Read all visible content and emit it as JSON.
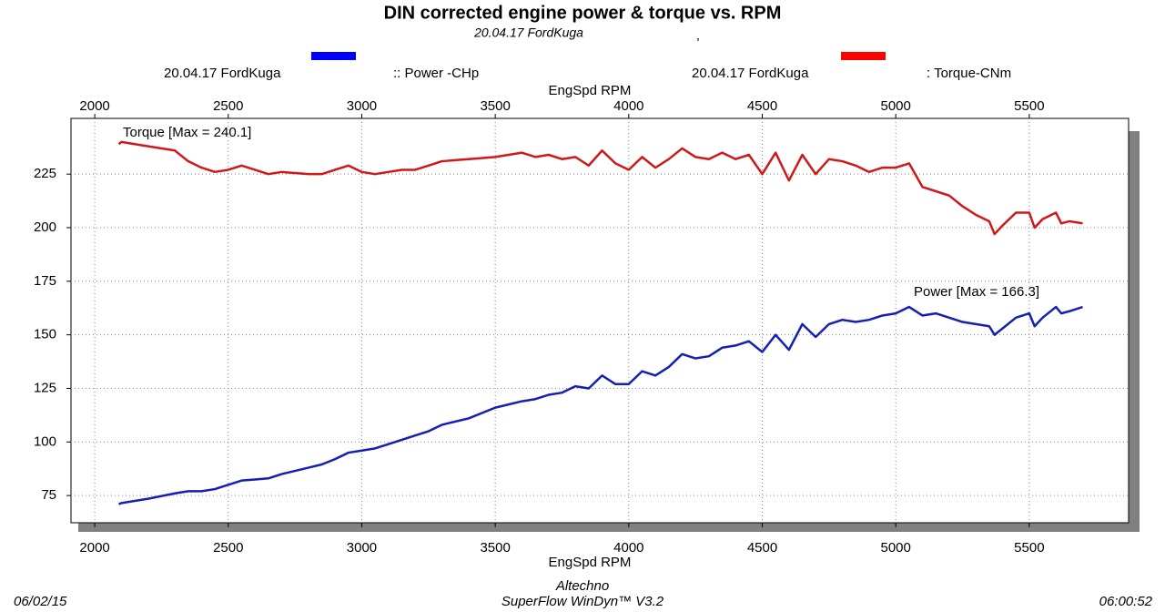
{
  "chart_data": {
    "type": "line",
    "title": "DIN corrected engine power & torque vs. RPM",
    "subtitle": "20.04.17 FordKuga",
    "subtitle_mark": ",",
    "xlabel": "EngSpd RPM",
    "xlim": [
      1911,
      5872
    ],
    "ylim": [
      62.3,
      251
    ],
    "xticks": [
      2000,
      2500,
      3000,
      3500,
      4000,
      4500,
      5000,
      5500
    ],
    "yticks": [
      75,
      100,
      125,
      150,
      175,
      200,
      225
    ],
    "grid": true,
    "x": [
      2090,
      2100,
      2200,
      2300,
      2350,
      2400,
      2450,
      2500,
      2550,
      2600,
      2650,
      2700,
      2800,
      2850,
      2900,
      2950,
      3000,
      3050,
      3100,
      3150,
      3200,
      3250,
      3300,
      3400,
      3500,
      3600,
      3650,
      3700,
      3750,
      3800,
      3850,
      3900,
      3950,
      4000,
      4050,
      4100,
      4150,
      4200,
      4250,
      4300,
      4350,
      4400,
      4450,
      4500,
      4550,
      4600,
      4650,
      4700,
      4750,
      4800,
      4850,
      4900,
      4950,
      5000,
      5050,
      5100,
      5150,
      5200,
      5250,
      5300,
      5350,
      5370,
      5400,
      5450,
      5500,
      5520,
      5550,
      5600,
      5620,
      5650,
      5700
    ],
    "series": [
      {
        "name": ":: Power -CHp",
        "run": "20.04.17 FordKuga",
        "color": "#1420b4",
        "swatch": "#0000ff",
        "annotation": "Power  [Max = 166.3]",
        "values": [
          71,
          71.5,
          73.5,
          76,
          77,
          77,
          78,
          80,
          82,
          82.5,
          83,
          85,
          88,
          89.5,
          92,
          95,
          96,
          97,
          99,
          101,
          103,
          105,
          108,
          111,
          116,
          119,
          120,
          122,
          123,
          126,
          125,
          131,
          127,
          127,
          133,
          131,
          135,
          141,
          139,
          140,
          144,
          145,
          147,
          142,
          150,
          143,
          155,
          149,
          155,
          157,
          156,
          157,
          159,
          160,
          163,
          159,
          160,
          158,
          156,
          155,
          154,
          150,
          153,
          158,
          160,
          154,
          158,
          163,
          160,
          161,
          163
        ]
      },
      {
        "name": ": Torque-CNm",
        "run": "20.04.17 FordKuga",
        "color": "#d01818",
        "swatch": "#ff0000",
        "annotation": "Torque [Max = 240.1]",
        "values": [
          239,
          240,
          238,
          236,
          231,
          228,
          226,
          227,
          229,
          227,
          225,
          226,
          225,
          225,
          227,
          229,
          226,
          225,
          226,
          227,
          227,
          229,
          231,
          232,
          233,
          235,
          233,
          234,
          232,
          233,
          229,
          236,
          230,
          227,
          233,
          228,
          232,
          237,
          233,
          232,
          235,
          232,
          234,
          225,
          235,
          222,
          234,
          225,
          232,
          231,
          229,
          226,
          228,
          228,
          230,
          219,
          217,
          215,
          210,
          206,
          203,
          197,
          201,
          207,
          207,
          200,
          204,
          207,
          202,
          203,
          202
        ]
      }
    ],
    "footer": {
      "date": "06/02/15",
      "company": "Altechno",
      "software": "SuperFlow WinDyn™ V3.2",
      "time": "06:00:52"
    }
  }
}
